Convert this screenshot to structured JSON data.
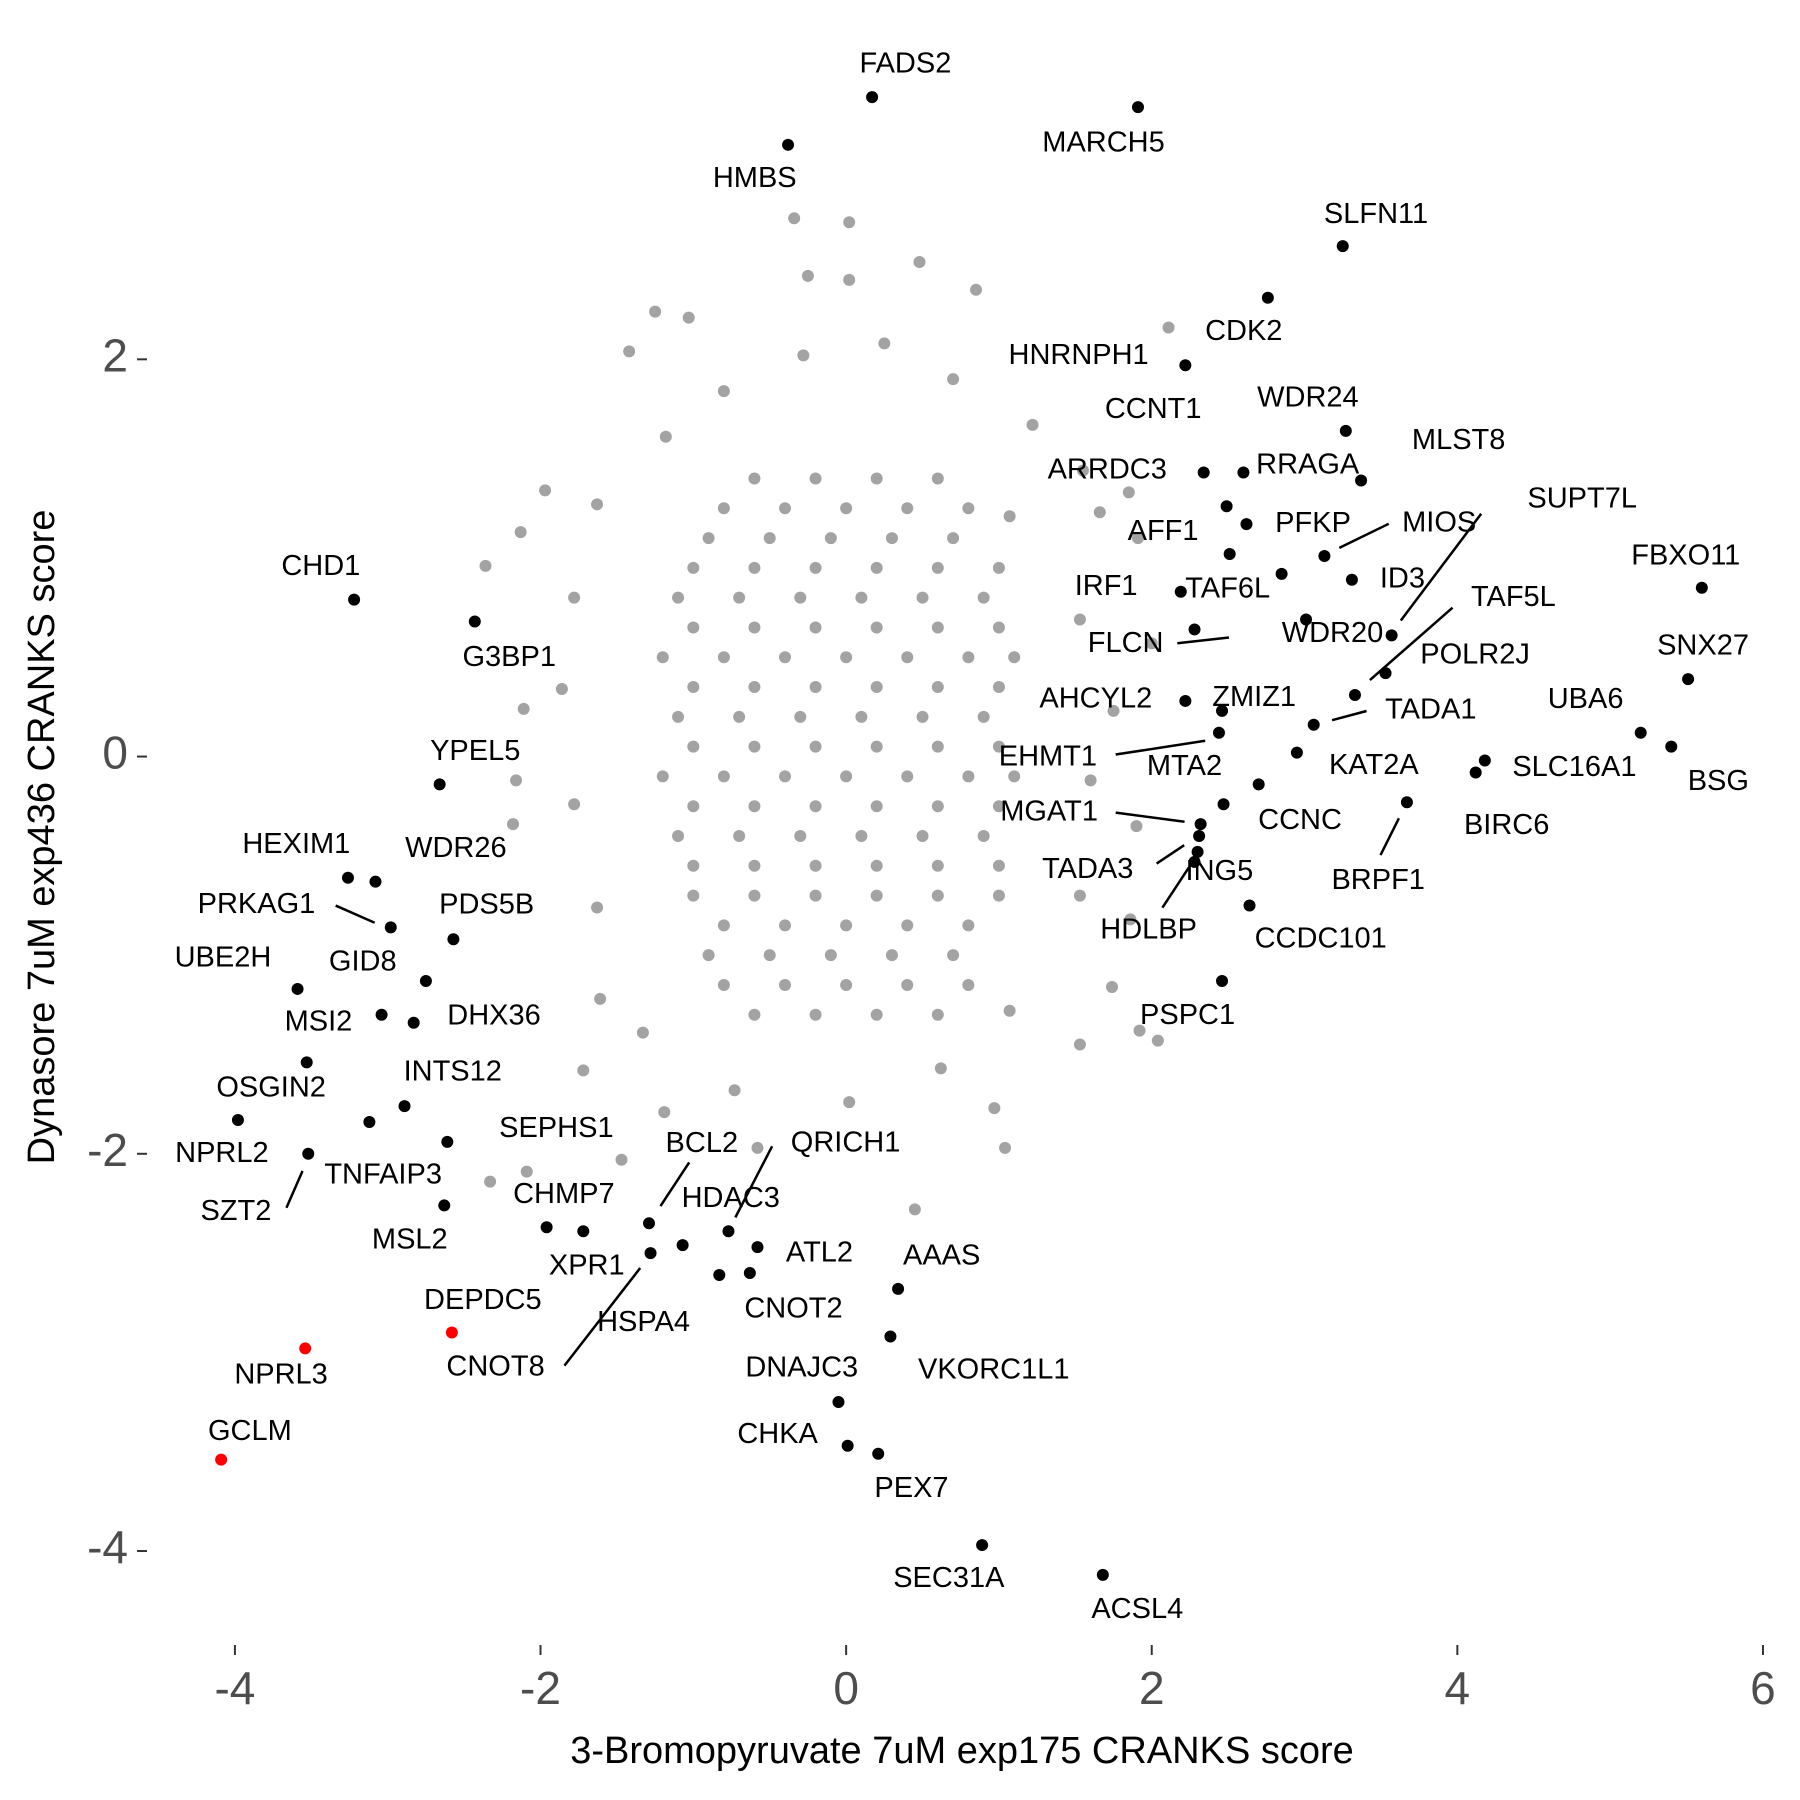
{
  "chart_data": {
    "type": "scatter",
    "x_label": "3-Bromopyruvate 7uM exp175 CRANKS score",
    "y_label": "Dynasore 7uM exp436 CRANKS score",
    "xlim": [
      -4.5,
      6.05
    ],
    "ylim": [
      -4.45,
      3.5
    ],
    "xticks": [
      -4,
      -2,
      0,
      2,
      4,
      6
    ],
    "yticks": [
      -4,
      -2,
      0,
      2
    ],
    "grid": false,
    "background": {
      "color": "#a3a3a3",
      "points": [
        [
          -0.6,
          1.4
        ],
        [
          -0.2,
          1.4
        ],
        [
          0.2,
          1.4
        ],
        [
          0.6,
          1.4
        ],
        [
          -0.8,
          1.25
        ],
        [
          -0.4,
          1.25
        ],
        [
          0,
          1.25
        ],
        [
          0.4,
          1.25
        ],
        [
          0.8,
          1.25
        ],
        [
          -0.9,
          1.1
        ],
        [
          -0.5,
          1.1
        ],
        [
          -0.1,
          1.1
        ],
        [
          0.3,
          1.1
        ],
        [
          0.7,
          1.1
        ],
        [
          -1.0,
          0.95
        ],
        [
          -0.6,
          0.95
        ],
        [
          -0.2,
          0.95
        ],
        [
          0.2,
          0.95
        ],
        [
          0.6,
          0.95
        ],
        [
          1.0,
          0.95
        ],
        [
          -1.1,
          0.8
        ],
        [
          -0.7,
          0.8
        ],
        [
          -0.3,
          0.8
        ],
        [
          0.1,
          0.8
        ],
        [
          0.5,
          0.8
        ],
        [
          0.9,
          0.8
        ],
        [
          -1.0,
          0.65
        ],
        [
          -0.6,
          0.65
        ],
        [
          -0.2,
          0.65
        ],
        [
          0.2,
          0.65
        ],
        [
          0.6,
          0.65
        ],
        [
          1.0,
          0.65
        ],
        [
          -1.2,
          0.5
        ],
        [
          -0.8,
          0.5
        ],
        [
          -0.4,
          0.5
        ],
        [
          0,
          0.5
        ],
        [
          0.4,
          0.5
        ],
        [
          0.8,
          0.5
        ],
        [
          1.1,
          0.5
        ],
        [
          -1.0,
          0.35
        ],
        [
          -0.6,
          0.35
        ],
        [
          -0.2,
          0.35
        ],
        [
          0.2,
          0.35
        ],
        [
          0.6,
          0.35
        ],
        [
          1.0,
          0.35
        ],
        [
          -1.1,
          0.2
        ],
        [
          -0.7,
          0.2
        ],
        [
          -0.3,
          0.2
        ],
        [
          0.1,
          0.2
        ],
        [
          0.5,
          0.2
        ],
        [
          0.9,
          0.2
        ],
        [
          -1.0,
          0.05
        ],
        [
          -0.6,
          0.05
        ],
        [
          -0.2,
          0.05
        ],
        [
          0.2,
          0.05
        ],
        [
          0.6,
          0.05
        ],
        [
          1.0,
          0.05
        ],
        [
          -1.2,
          -0.1
        ],
        [
          -0.8,
          -0.1
        ],
        [
          -0.4,
          -0.1
        ],
        [
          0,
          -0.1
        ],
        [
          0.4,
          -0.1
        ],
        [
          0.8,
          -0.1
        ],
        [
          1.1,
          -0.1
        ],
        [
          -1.0,
          -0.25
        ],
        [
          -0.6,
          -0.25
        ],
        [
          -0.2,
          -0.25
        ],
        [
          0.2,
          -0.25
        ],
        [
          0.6,
          -0.25
        ],
        [
          1.0,
          -0.25
        ],
        [
          -1.1,
          -0.4
        ],
        [
          -0.7,
          -0.4
        ],
        [
          -0.3,
          -0.4
        ],
        [
          0.1,
          -0.4
        ],
        [
          0.5,
          -0.4
        ],
        [
          0.9,
          -0.4
        ],
        [
          -1.0,
          -0.55
        ],
        [
          -0.6,
          -0.55
        ],
        [
          -0.2,
          -0.55
        ],
        [
          0.2,
          -0.55
        ],
        [
          0.6,
          -0.55
        ],
        [
          1.0,
          -0.55
        ],
        [
          -1.0,
          -0.7
        ],
        [
          -0.6,
          -0.7
        ],
        [
          -0.2,
          -0.7
        ],
        [
          0.2,
          -0.7
        ],
        [
          0.6,
          -0.7
        ],
        [
          1.0,
          -0.7
        ],
        [
          -0.8,
          -0.85
        ],
        [
          -0.4,
          -0.85
        ],
        [
          0,
          -0.85
        ],
        [
          0.4,
          -0.85
        ],
        [
          0.8,
          -0.85
        ],
        [
          -0.9,
          -1.0
        ],
        [
          -0.5,
          -1.0
        ],
        [
          -0.1,
          -1.0
        ],
        [
          0.3,
          -1.0
        ],
        [
          0.7,
          -1.0
        ],
        [
          -0.8,
          -1.15
        ],
        [
          -0.4,
          -1.15
        ],
        [
          0,
          -1.15
        ],
        [
          0.4,
          -1.15
        ],
        [
          0.8,
          -1.15
        ],
        [
          -0.6,
          -1.3
        ],
        [
          -0.2,
          -1.3
        ],
        [
          0.2,
          -1.3
        ],
        [
          0.6,
          -1.3
        ],
        [
          -0.34,
          2.71
        ],
        [
          0.02,
          2.69
        ],
        [
          0.48,
          2.49
        ],
        [
          -0.25,
          2.42
        ],
        [
          0.02,
          2.4
        ],
        [
          -1.25,
          2.24
        ],
        [
          -1.03,
          2.21
        ],
        [
          0.85,
          2.35
        ],
        [
          -1.42,
          2.04
        ],
        [
          2.11,
          2.16
        ],
        [
          -1.97,
          1.34
        ],
        [
          -2.36,
          0.96
        ],
        [
          -2.13,
          1.13
        ],
        [
          1.74,
          -1.16
        ],
        [
          2.04,
          -1.43
        ],
        [
          1.92,
          -1.38
        ],
        [
          1.04,
          -1.97
        ],
        [
          0.45,
          -2.28
        ],
        [
          -2.33,
          -2.14
        ],
        [
          -2.09,
          -2.09
        ],
        [
          -1.47,
          -2.03
        ],
        [
          0.97,
          -1.77
        ],
        [
          1.66,
          1.23
        ],
        [
          1.55,
          1.44
        ],
        [
          1.85,
          1.33
        ],
        [
          1.91,
          1.1
        ],
        [
          2.0,
          0.57
        ],
        [
          -2.11,
          0.24
        ],
        [
          -2.16,
          -0.12
        ],
        [
          -2.18,
          -0.34
        ],
        [
          -1.61,
          -1.22
        ],
        [
          -1.72,
          -1.58
        ],
        [
          -1.19,
          -1.79
        ],
        [
          -0.58,
          -1.97
        ],
        [
          0.02,
          -1.74
        ],
        [
          1.53,
          -1.45
        ],
        [
          1.86,
          -0.82
        ],
        [
          1.9,
          -0.35
        ],
        [
          1.75,
          0.23
        ],
        [
          1.22,
          1.67
        ],
        [
          0.7,
          1.9
        ],
        [
          0.25,
          2.08
        ],
        [
          -0.28,
          2.02
        ],
        [
          -0.8,
          1.84
        ],
        [
          -1.18,
          1.61
        ],
        [
          -1.63,
          1.27
        ],
        [
          -1.78,
          0.8
        ],
        [
          -1.86,
          0.34
        ],
        [
          -1.78,
          -0.24
        ],
        [
          -1.63,
          -0.76
        ],
        [
          -1.33,
          -1.39
        ],
        [
          -0.73,
          -1.68
        ],
        [
          0.62,
          -1.57
        ],
        [
          1.07,
          -1.28
        ],
        [
          1.53,
          -0.7
        ],
        [
          1.6,
          -0.12
        ],
        [
          1.53,
          0.69
        ],
        [
          1.07,
          1.21
        ]
      ]
    },
    "labeled": {
      "color": "#000000",
      "points": [
        {
          "label": "FADS2",
          "x": 0.17,
          "y": 3.32
        },
        {
          "label": "MARCH5",
          "x": 1.91,
          "y": 3.27
        },
        {
          "label": "HMBS",
          "x": -0.38,
          "y": 3.08
        },
        {
          "label": "SLFN11",
          "x": 3.25,
          "y": 2.57
        },
        {
          "label": "CDK2",
          "x": 2.76,
          "y": 2.31
        },
        {
          "label": "HNRNPH1",
          "x": 2.22,
          "y": 1.97
        },
        {
          "label": "WDR24",
          "x": 3.27,
          "y": 1.64
        },
        {
          "label": "MLST8",
          "x": 3.37,
          "y": 1.39
        },
        {
          "label": "CCNT1",
          "x": 2.34,
          "y": 1.43
        },
        {
          "label": "RRAGA",
          "x": 2.6,
          "y": 1.43
        },
        {
          "label": "ARRDC3",
          "x": 2.49,
          "y": 1.26
        },
        {
          "label": "PFKP",
          "x": 2.62,
          "y": 1.17
        },
        {
          "label": "AFF1",
          "x": 2.51,
          "y": 1.02
        },
        {
          "label": "MIOS",
          "x": 3.13,
          "y": 1.01
        },
        {
          "label": "SUPT7L",
          "x": 3.57,
          "y": 0.61
        },
        {
          "label": "ID3",
          "x": 3.31,
          "y": 0.89
        },
        {
          "label": "FBXO11",
          "x": 5.6,
          "y": 0.85
        },
        {
          "label": "CHD1",
          "x": -3.22,
          "y": 0.79
        },
        {
          "label": "IRF1",
          "x": 2.19,
          "y": 0.83
        },
        {
          "label": "TAF6L",
          "x": 2.85,
          "y": 0.92
        },
        {
          "label": "TAF5L",
          "x": 3.33,
          "y": 0.31
        },
        {
          "label": "POLR2J",
          "x": 3.53,
          "y": 0.42
        },
        {
          "label": "WDR20",
          "x": 3.01,
          "y": 0.69
        },
        {
          "label": "SNX27",
          "x": 5.51,
          "y": 0.39
        },
        {
          "label": "FLCN",
          "x": 2.28,
          "y": 0.64
        },
        {
          "label": "G3BP1",
          "x": -2.43,
          "y": 0.68
        },
        {
          "label": "AHCYL2",
          "x": 2.22,
          "y": 0.28
        },
        {
          "label": "ZMIZ1",
          "x": 2.46,
          "y": 0.23
        },
        {
          "label": "UBA6",
          "x": 5.2,
          "y": 0.12
        },
        {
          "label": "TADA1",
          "x": 3.06,
          "y": 0.16
        },
        {
          "label": "EHMT1",
          "x": 2.44,
          "y": 0.12
        },
        {
          "label": "YPEL5",
          "x": -2.66,
          "y": -0.14
        },
        {
          "label": "KAT2A",
          "x": 2.95,
          "y": 0.02
        },
        {
          "label": "MTA2",
          "x": 2.47,
          "y": -0.24
        },
        {
          "label": "SLC16A1",
          "x": 4.18,
          "y": -0.02
        },
        {
          "label": "BSG",
          "x": 5.4,
          "y": 0.05
        },
        {
          "label": "BIRC6",
          "x": 4.12,
          "y": -0.08
        },
        {
          "label": "CCNC",
          "x": 2.7,
          "y": -0.14
        },
        {
          "label": "MGAT1",
          "x": 2.32,
          "y": -0.34
        },
        {
          "label": "BRPF1",
          "x": 3.67,
          "y": -0.23
        },
        {
          "label": "HEXIM1",
          "x": -3.26,
          "y": -0.61
        },
        {
          "label": "WDR26",
          "x": -3.08,
          "y": -0.63
        },
        {
          "label": "TADA3",
          "x": 2.31,
          "y": -0.4
        },
        {
          "label": "ING5",
          "x": 2.3,
          "y": -0.48
        },
        {
          "label": "HDLBP",
          "x": 2.28,
          "y": -0.53
        },
        {
          "label": "CCDC101",
          "x": 2.64,
          "y": -0.75
        },
        {
          "label": "PRKAG1",
          "x": -2.98,
          "y": -0.86
        },
        {
          "label": "PDS5B",
          "x": -2.57,
          "y": -0.92
        },
        {
          "label": "UBE2H",
          "x": -3.59,
          "y": -1.17
        },
        {
          "label": "GID8",
          "x": -2.75,
          "y": -1.13
        },
        {
          "label": "PSPC1",
          "x": 2.46,
          "y": -1.13
        },
        {
          "label": "MSI2",
          "x": -3.04,
          "y": -1.3
        },
        {
          "label": "DHX36",
          "x": -2.83,
          "y": -1.34
        },
        {
          "label": "OSGIN2",
          "x": -3.53,
          "y": -1.54
        },
        {
          "label": "INTS12",
          "x": -2.89,
          "y": -1.76
        },
        {
          "label": "NPRL2",
          "x": -3.98,
          "y": -1.83
        },
        {
          "label": "SEPHS1",
          "x": -2.61,
          "y": -1.94
        },
        {
          "label": "TNFAIP3",
          "x": -3.12,
          "y": -1.84
        },
        {
          "label": "SZT2",
          "x": -3.52,
          "y": -2.0
        },
        {
          "label": "BCL2",
          "x": -1.29,
          "y": -2.35
        },
        {
          "label": "QRICH1",
          "x": -0.77,
          "y": -2.39
        },
        {
          "label": "CHMP7",
          "x": -1.96,
          "y": -2.37
        },
        {
          "label": "HDAC3",
          "x": -0.83,
          "y": -2.61
        },
        {
          "label": "MSL2",
          "x": -2.63,
          "y": -2.26
        },
        {
          "label": "XPR1",
          "x": -1.72,
          "y": -2.39
        },
        {
          "label": "ATL2",
          "x": -0.58,
          "y": -2.47
        },
        {
          "label": "AAAS",
          "x": 0.34,
          "y": -2.68
        },
        {
          "label": "HSPA4",
          "x": -1.07,
          "y": -2.46
        },
        {
          "label": "CNOT2",
          "x": -0.63,
          "y": -2.6
        },
        {
          "label": "CNOT8",
          "x": -1.28,
          "y": -2.5
        },
        {
          "label": "VKORC1L1",
          "x": 0.29,
          "y": -2.92
        },
        {
          "label": "DNAJC3",
          "x": -0.05,
          "y": -3.25
        },
        {
          "label": "CHKA",
          "x": 0.01,
          "y": -3.47
        },
        {
          "label": "PEX7",
          "x": 0.21,
          "y": -3.51
        },
        {
          "label": "SEC31A",
          "x": 0.89,
          "y": -3.97
        },
        {
          "label": "ACSL4",
          "x": 1.68,
          "y": -4.12
        }
      ]
    },
    "highlighted": {
      "color": "#ff0000",
      "points": [
        {
          "label": "DEPDC5",
          "x": -2.58,
          "y": -2.9
        },
        {
          "label": "NPRL3",
          "x": -3.54,
          "y": -2.98
        },
        {
          "label": "GCLM",
          "x": -4.09,
          "y": -3.54
        }
      ]
    }
  }
}
